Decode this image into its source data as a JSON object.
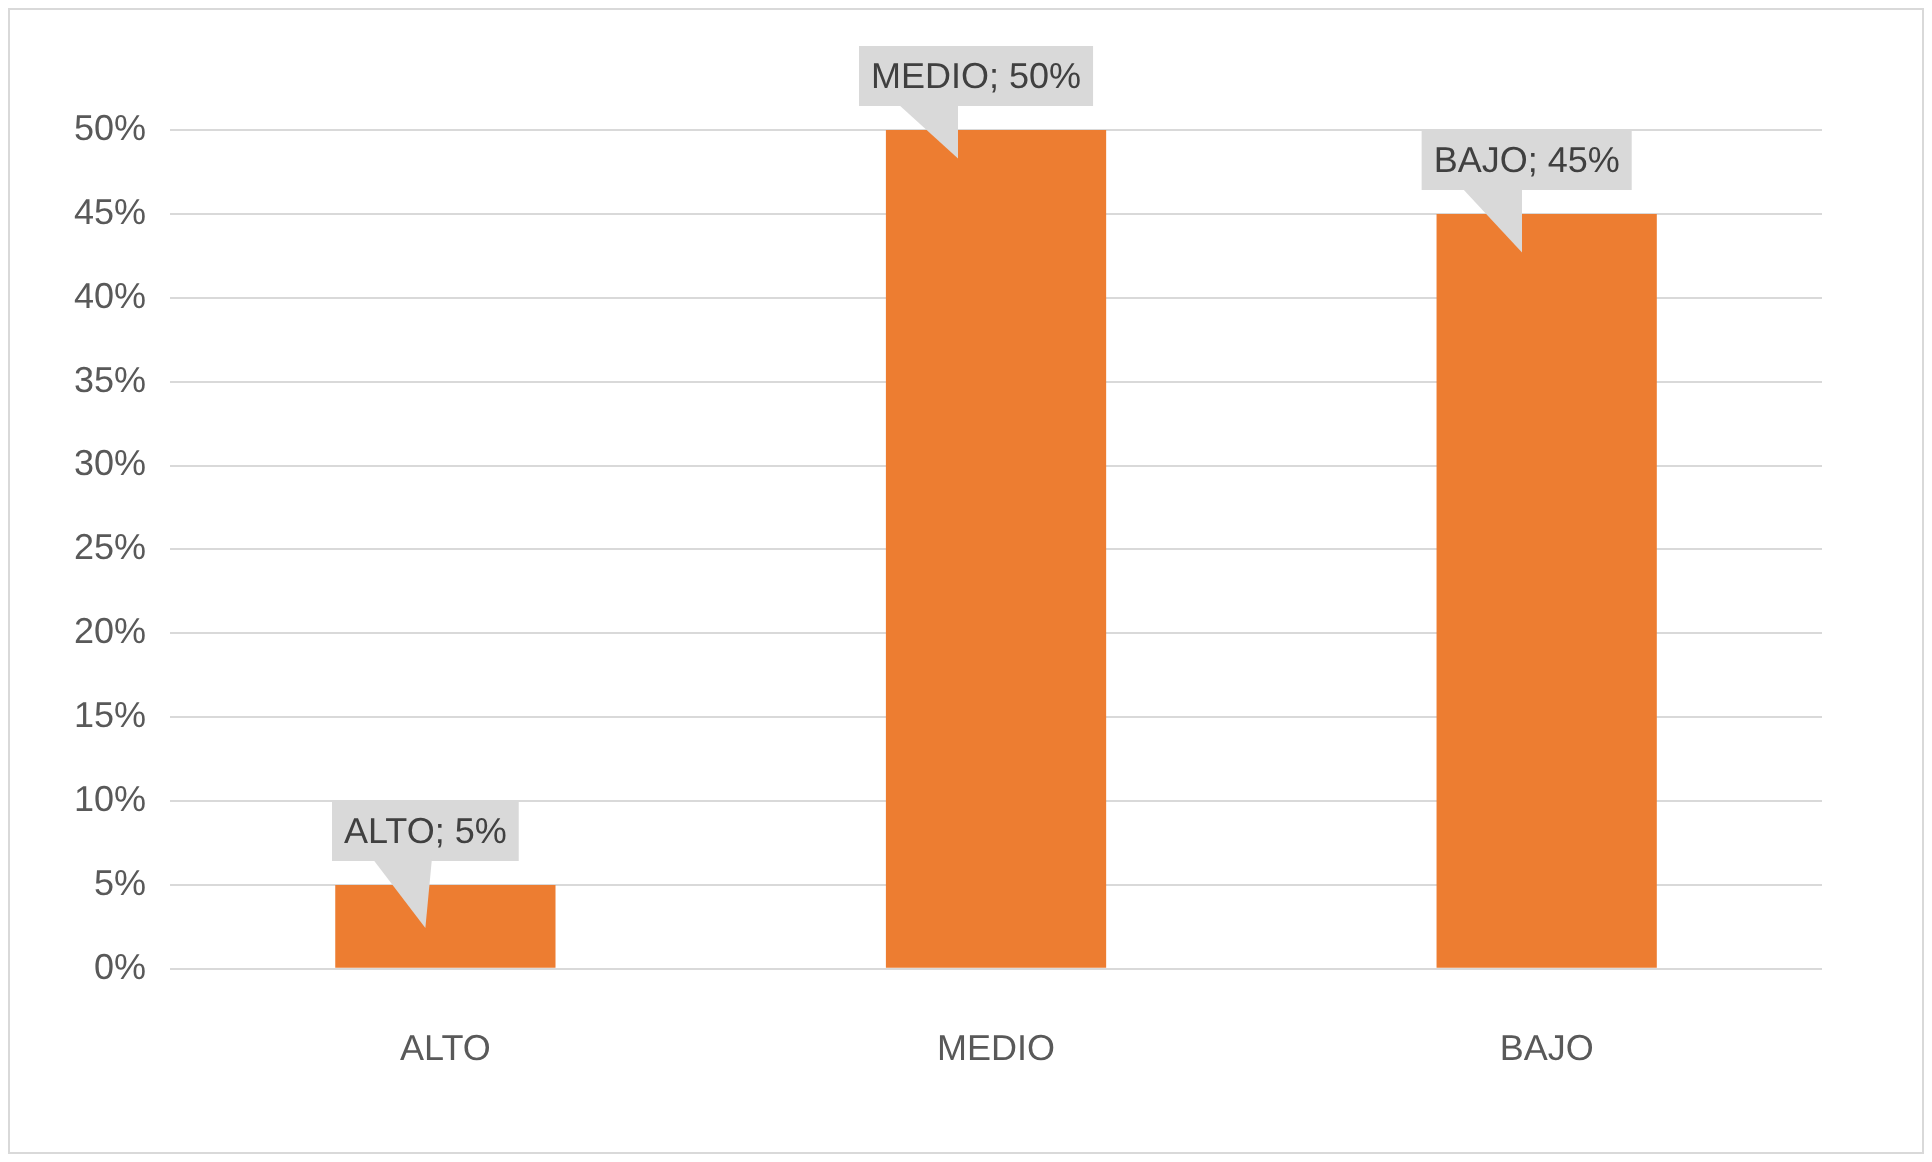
{
  "chart_data": {
    "type": "bar",
    "categories": [
      "ALTO",
      "MEDIO",
      "BAJO"
    ],
    "values": [
      5,
      50,
      45
    ],
    "color": "#ed7d31",
    "value_labels": [
      "ALTO; 5%",
      "MEDIO; 50%",
      "BAJO; 45%"
    ],
    "ylim": [
      0,
      50
    ],
    "yticks": [
      {
        "value": 0,
        "label": "0%"
      },
      {
        "value": 5,
        "label": "5%"
      },
      {
        "value": 10,
        "label": "10%"
      },
      {
        "value": 15,
        "label": "15%"
      },
      {
        "value": 20,
        "label": "20%"
      },
      {
        "value": 25,
        "label": "25%"
      },
      {
        "value": 30,
        "label": "30%"
      },
      {
        "value": 35,
        "label": "35%"
      },
      {
        "value": 40,
        "label": "40%"
      },
      {
        "value": 45,
        "label": "45%"
      },
      {
        "value": 50,
        "label": "50%"
      }
    ],
    "grid": "y",
    "legend": false
  }
}
